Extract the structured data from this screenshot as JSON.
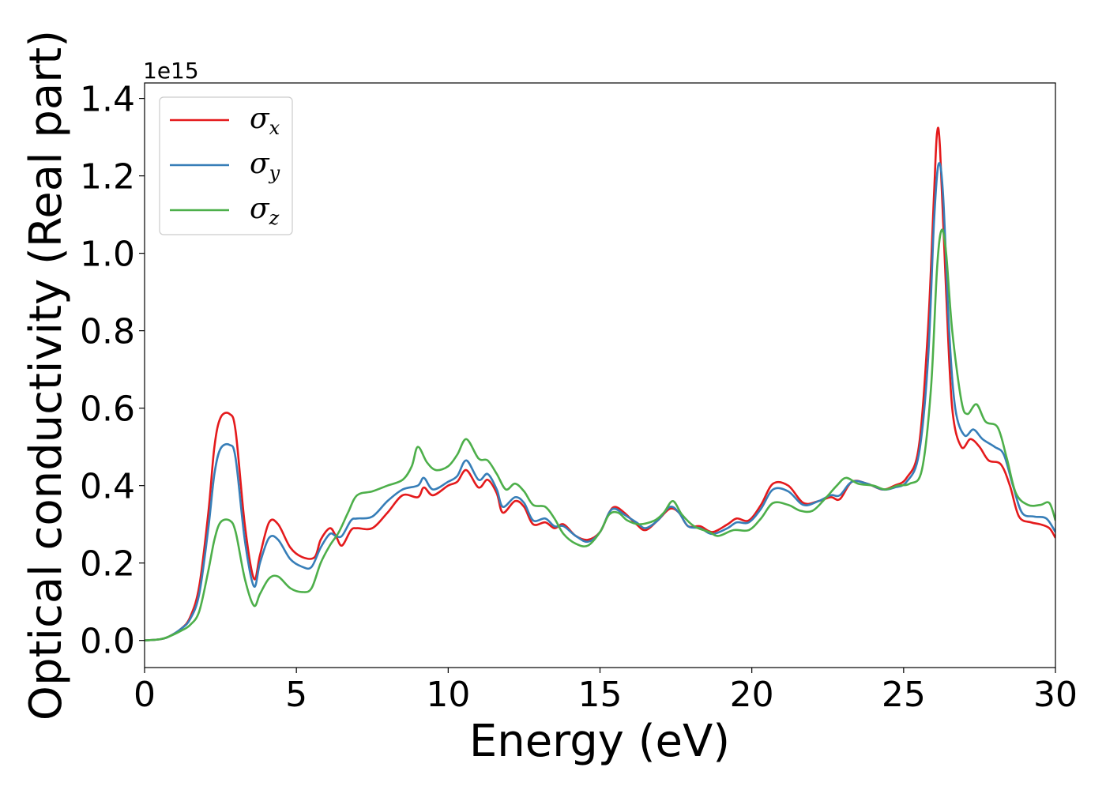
{
  "chart_data": {
    "type": "line",
    "xlabel": "Energy (eV)",
    "ylabel": "Optical conductivity (Real part)",
    "y_offset_label": "1e15",
    "xlim": [
      0,
      30
    ],
    "ylim": [
      -0.07,
      1.44
    ],
    "xticks": [
      0,
      5,
      10,
      15,
      20,
      25,
      30
    ],
    "xtick_labels": [
      "0",
      "5",
      "10",
      "15",
      "20",
      "25",
      "30"
    ],
    "yticks": [
      0.0,
      0.2,
      0.4,
      0.6,
      0.8,
      1.0,
      1.2,
      1.4
    ],
    "ytick_labels": [
      "0.0",
      "0.2",
      "0.4",
      "0.6",
      "0.8",
      "1.0",
      "1.2",
      "1.4"
    ],
    "grid": false,
    "legend_position": "top-left",
    "series": [
      {
        "name": "σx",
        "legend_symbol": "σ",
        "legend_subscript": "x",
        "color": "#e41a1c",
        "points": [
          [
            0,
            0
          ],
          [
            0.5,
            0.003
          ],
          [
            0.8,
            0.01
          ],
          [
            1.2,
            0.03
          ],
          [
            1.5,
            0.06
          ],
          [
            1.8,
            0.14
          ],
          [
            2.1,
            0.33
          ],
          [
            2.3,
            0.5
          ],
          [
            2.5,
            0.575
          ],
          [
            2.8,
            0.585
          ],
          [
            3.0,
            0.54
          ],
          [
            3.3,
            0.3
          ],
          [
            3.6,
            0.16
          ],
          [
            3.8,
            0.22
          ],
          [
            4.1,
            0.305
          ],
          [
            4.4,
            0.3
          ],
          [
            4.8,
            0.24
          ],
          [
            5.2,
            0.215
          ],
          [
            5.6,
            0.215
          ],
          [
            5.8,
            0.26
          ],
          [
            6.1,
            0.29
          ],
          [
            6.3,
            0.27
          ],
          [
            6.5,
            0.245
          ],
          [
            6.8,
            0.285
          ],
          [
            7.0,
            0.29
          ],
          [
            7.5,
            0.29
          ],
          [
            8.0,
            0.33
          ],
          [
            8.5,
            0.375
          ],
          [
            9.0,
            0.37
          ],
          [
            9.2,
            0.395
          ],
          [
            9.5,
            0.375
          ],
          [
            10.0,
            0.4
          ],
          [
            10.3,
            0.41
          ],
          [
            10.6,
            0.44
          ],
          [
            11.0,
            0.395
          ],
          [
            11.3,
            0.415
          ],
          [
            11.6,
            0.38
          ],
          [
            11.8,
            0.33
          ],
          [
            12.2,
            0.36
          ],
          [
            12.5,
            0.345
          ],
          [
            12.8,
            0.3
          ],
          [
            13.2,
            0.305
          ],
          [
            13.5,
            0.29
          ],
          [
            13.8,
            0.3
          ],
          [
            14.2,
            0.27
          ],
          [
            14.6,
            0.26
          ],
          [
            15.0,
            0.28
          ],
          [
            15.3,
            0.33
          ],
          [
            15.5,
            0.345
          ],
          [
            15.8,
            0.33
          ],
          [
            16.2,
            0.3
          ],
          [
            16.5,
            0.285
          ],
          [
            16.9,
            0.31
          ],
          [
            17.3,
            0.34
          ],
          [
            17.6,
            0.33
          ],
          [
            17.9,
            0.295
          ],
          [
            18.3,
            0.295
          ],
          [
            18.7,
            0.28
          ],
          [
            19.2,
            0.3
          ],
          [
            19.5,
            0.315
          ],
          [
            19.9,
            0.31
          ],
          [
            20.3,
            0.35
          ],
          [
            20.7,
            0.405
          ],
          [
            21.2,
            0.4
          ],
          [
            21.7,
            0.355
          ],
          [
            22.2,
            0.36
          ],
          [
            22.6,
            0.37
          ],
          [
            22.9,
            0.365
          ],
          [
            23.3,
            0.41
          ],
          [
            23.8,
            0.405
          ],
          [
            24.3,
            0.39
          ],
          [
            24.7,
            0.4
          ],
          [
            25.1,
            0.42
          ],
          [
            25.5,
            0.5
          ],
          [
            25.8,
            0.8
          ],
          [
            26.0,
            1.15
          ],
          [
            26.1,
            1.31
          ],
          [
            26.2,
            1.27
          ],
          [
            26.4,
            0.9
          ],
          [
            26.6,
            0.6
          ],
          [
            26.9,
            0.5
          ],
          [
            27.2,
            0.52
          ],
          [
            27.5,
            0.5
          ],
          [
            27.8,
            0.465
          ],
          [
            28.2,
            0.455
          ],
          [
            28.5,
            0.4
          ],
          [
            28.8,
            0.32
          ],
          [
            29.2,
            0.305
          ],
          [
            29.5,
            0.3
          ],
          [
            29.8,
            0.29
          ],
          [
            30.0,
            0.265
          ]
        ]
      },
      {
        "name": "σy",
        "legend_symbol": "σ",
        "legend_subscript": "y",
        "color": "#377eb8",
        "points": [
          [
            0,
            0
          ],
          [
            0.5,
            0.003
          ],
          [
            0.8,
            0.01
          ],
          [
            1.2,
            0.03
          ],
          [
            1.5,
            0.055
          ],
          [
            1.8,
            0.12
          ],
          [
            2.1,
            0.29
          ],
          [
            2.3,
            0.43
          ],
          [
            2.5,
            0.495
          ],
          [
            2.8,
            0.505
          ],
          [
            3.0,
            0.47
          ],
          [
            3.3,
            0.26
          ],
          [
            3.6,
            0.14
          ],
          [
            3.8,
            0.2
          ],
          [
            4.1,
            0.265
          ],
          [
            4.4,
            0.26
          ],
          [
            4.8,
            0.21
          ],
          [
            5.2,
            0.19
          ],
          [
            5.5,
            0.19
          ],
          [
            5.8,
            0.24
          ],
          [
            6.1,
            0.275
          ],
          [
            6.3,
            0.27
          ],
          [
            6.5,
            0.27
          ],
          [
            6.8,
            0.31
          ],
          [
            7.0,
            0.315
          ],
          [
            7.5,
            0.32
          ],
          [
            8.0,
            0.36
          ],
          [
            8.5,
            0.39
          ],
          [
            9.0,
            0.4
          ],
          [
            9.2,
            0.42
          ],
          [
            9.5,
            0.39
          ],
          [
            10.0,
            0.41
          ],
          [
            10.3,
            0.425
          ],
          [
            10.6,
            0.465
          ],
          [
            11.0,
            0.415
          ],
          [
            11.3,
            0.43
          ],
          [
            11.6,
            0.39
          ],
          [
            11.8,
            0.345
          ],
          [
            12.2,
            0.37
          ],
          [
            12.5,
            0.355
          ],
          [
            12.8,
            0.31
          ],
          [
            13.2,
            0.315
          ],
          [
            13.5,
            0.295
          ],
          [
            13.8,
            0.295
          ],
          [
            14.2,
            0.27
          ],
          [
            14.6,
            0.255
          ],
          [
            15.0,
            0.28
          ],
          [
            15.3,
            0.33
          ],
          [
            15.5,
            0.34
          ],
          [
            15.8,
            0.325
          ],
          [
            16.2,
            0.305
          ],
          [
            16.5,
            0.29
          ],
          [
            16.9,
            0.31
          ],
          [
            17.3,
            0.345
          ],
          [
            17.6,
            0.33
          ],
          [
            17.9,
            0.295
          ],
          [
            18.3,
            0.29
          ],
          [
            18.7,
            0.275
          ],
          [
            19.2,
            0.29
          ],
          [
            19.5,
            0.305
          ],
          [
            19.9,
            0.305
          ],
          [
            20.3,
            0.34
          ],
          [
            20.7,
            0.39
          ],
          [
            21.2,
            0.385
          ],
          [
            21.7,
            0.35
          ],
          [
            22.2,
            0.36
          ],
          [
            22.6,
            0.375
          ],
          [
            22.9,
            0.375
          ],
          [
            23.3,
            0.41
          ],
          [
            23.8,
            0.405
          ],
          [
            24.3,
            0.39
          ],
          [
            24.7,
            0.395
          ],
          [
            25.1,
            0.41
          ],
          [
            25.5,
            0.48
          ],
          [
            25.8,
            0.72
          ],
          [
            26.0,
            1.08
          ],
          [
            26.15,
            1.23
          ],
          [
            26.3,
            1.15
          ],
          [
            26.5,
            0.8
          ],
          [
            26.7,
            0.6
          ],
          [
            27.0,
            0.53
          ],
          [
            27.3,
            0.545
          ],
          [
            27.6,
            0.52
          ],
          [
            28.0,
            0.5
          ],
          [
            28.3,
            0.48
          ],
          [
            28.6,
            0.4
          ],
          [
            28.9,
            0.33
          ],
          [
            29.3,
            0.32
          ],
          [
            29.7,
            0.315
          ],
          [
            30.0,
            0.28
          ]
        ]
      },
      {
        "name": "σz",
        "legend_symbol": "σ",
        "legend_subscript": "z",
        "color": "#4daf4a",
        "points": [
          [
            0,
            0
          ],
          [
            0.5,
            0.003
          ],
          [
            0.8,
            0.01
          ],
          [
            1.2,
            0.025
          ],
          [
            1.5,
            0.04
          ],
          [
            1.8,
            0.075
          ],
          [
            2.1,
            0.18
          ],
          [
            2.3,
            0.26
          ],
          [
            2.5,
            0.305
          ],
          [
            2.8,
            0.31
          ],
          [
            3.0,
            0.28
          ],
          [
            3.3,
            0.16
          ],
          [
            3.6,
            0.09
          ],
          [
            3.8,
            0.12
          ],
          [
            4.1,
            0.16
          ],
          [
            4.4,
            0.165
          ],
          [
            4.8,
            0.135
          ],
          [
            5.2,
            0.125
          ],
          [
            5.5,
            0.135
          ],
          [
            5.8,
            0.2
          ],
          [
            6.1,
            0.245
          ],
          [
            6.4,
            0.28
          ],
          [
            6.7,
            0.33
          ],
          [
            7.0,
            0.375
          ],
          [
            7.5,
            0.385
          ],
          [
            8.0,
            0.4
          ],
          [
            8.5,
            0.415
          ],
          [
            8.8,
            0.45
          ],
          [
            9.0,
            0.5
          ],
          [
            9.3,
            0.46
          ],
          [
            9.6,
            0.44
          ],
          [
            10.0,
            0.45
          ],
          [
            10.3,
            0.48
          ],
          [
            10.6,
            0.52
          ],
          [
            11.0,
            0.47
          ],
          [
            11.3,
            0.465
          ],
          [
            11.6,
            0.43
          ],
          [
            11.9,
            0.39
          ],
          [
            12.2,
            0.405
          ],
          [
            12.5,
            0.385
          ],
          [
            12.8,
            0.35
          ],
          [
            13.2,
            0.345
          ],
          [
            13.5,
            0.315
          ],
          [
            13.8,
            0.275
          ],
          [
            14.2,
            0.25
          ],
          [
            14.6,
            0.245
          ],
          [
            15.0,
            0.28
          ],
          [
            15.3,
            0.325
          ],
          [
            15.6,
            0.33
          ],
          [
            15.9,
            0.31
          ],
          [
            16.3,
            0.3
          ],
          [
            16.8,
            0.31
          ],
          [
            17.1,
            0.33
          ],
          [
            17.4,
            0.36
          ],
          [
            17.7,
            0.325
          ],
          [
            18.1,
            0.295
          ],
          [
            18.6,
            0.28
          ],
          [
            18.9,
            0.27
          ],
          [
            19.4,
            0.285
          ],
          [
            19.9,
            0.285
          ],
          [
            20.3,
            0.315
          ],
          [
            20.7,
            0.355
          ],
          [
            21.2,
            0.35
          ],
          [
            21.6,
            0.335
          ],
          [
            22.0,
            0.335
          ],
          [
            22.4,
            0.365
          ],
          [
            22.8,
            0.4
          ],
          [
            23.1,
            0.42
          ],
          [
            23.5,
            0.405
          ],
          [
            24.0,
            0.4
          ],
          [
            24.4,
            0.39
          ],
          [
            24.8,
            0.4
          ],
          [
            25.2,
            0.405
          ],
          [
            25.6,
            0.44
          ],
          [
            25.9,
            0.65
          ],
          [
            26.1,
            0.96
          ],
          [
            26.25,
            1.06
          ],
          [
            26.4,
            1.0
          ],
          [
            26.6,
            0.8
          ],
          [
            26.9,
            0.62
          ],
          [
            27.1,
            0.585
          ],
          [
            27.4,
            0.61
          ],
          [
            27.7,
            0.565
          ],
          [
            28.1,
            0.55
          ],
          [
            28.4,
            0.47
          ],
          [
            28.7,
            0.38
          ],
          [
            29.1,
            0.35
          ],
          [
            29.5,
            0.35
          ],
          [
            29.8,
            0.355
          ],
          [
            30.0,
            0.31
          ]
        ]
      }
    ]
  }
}
